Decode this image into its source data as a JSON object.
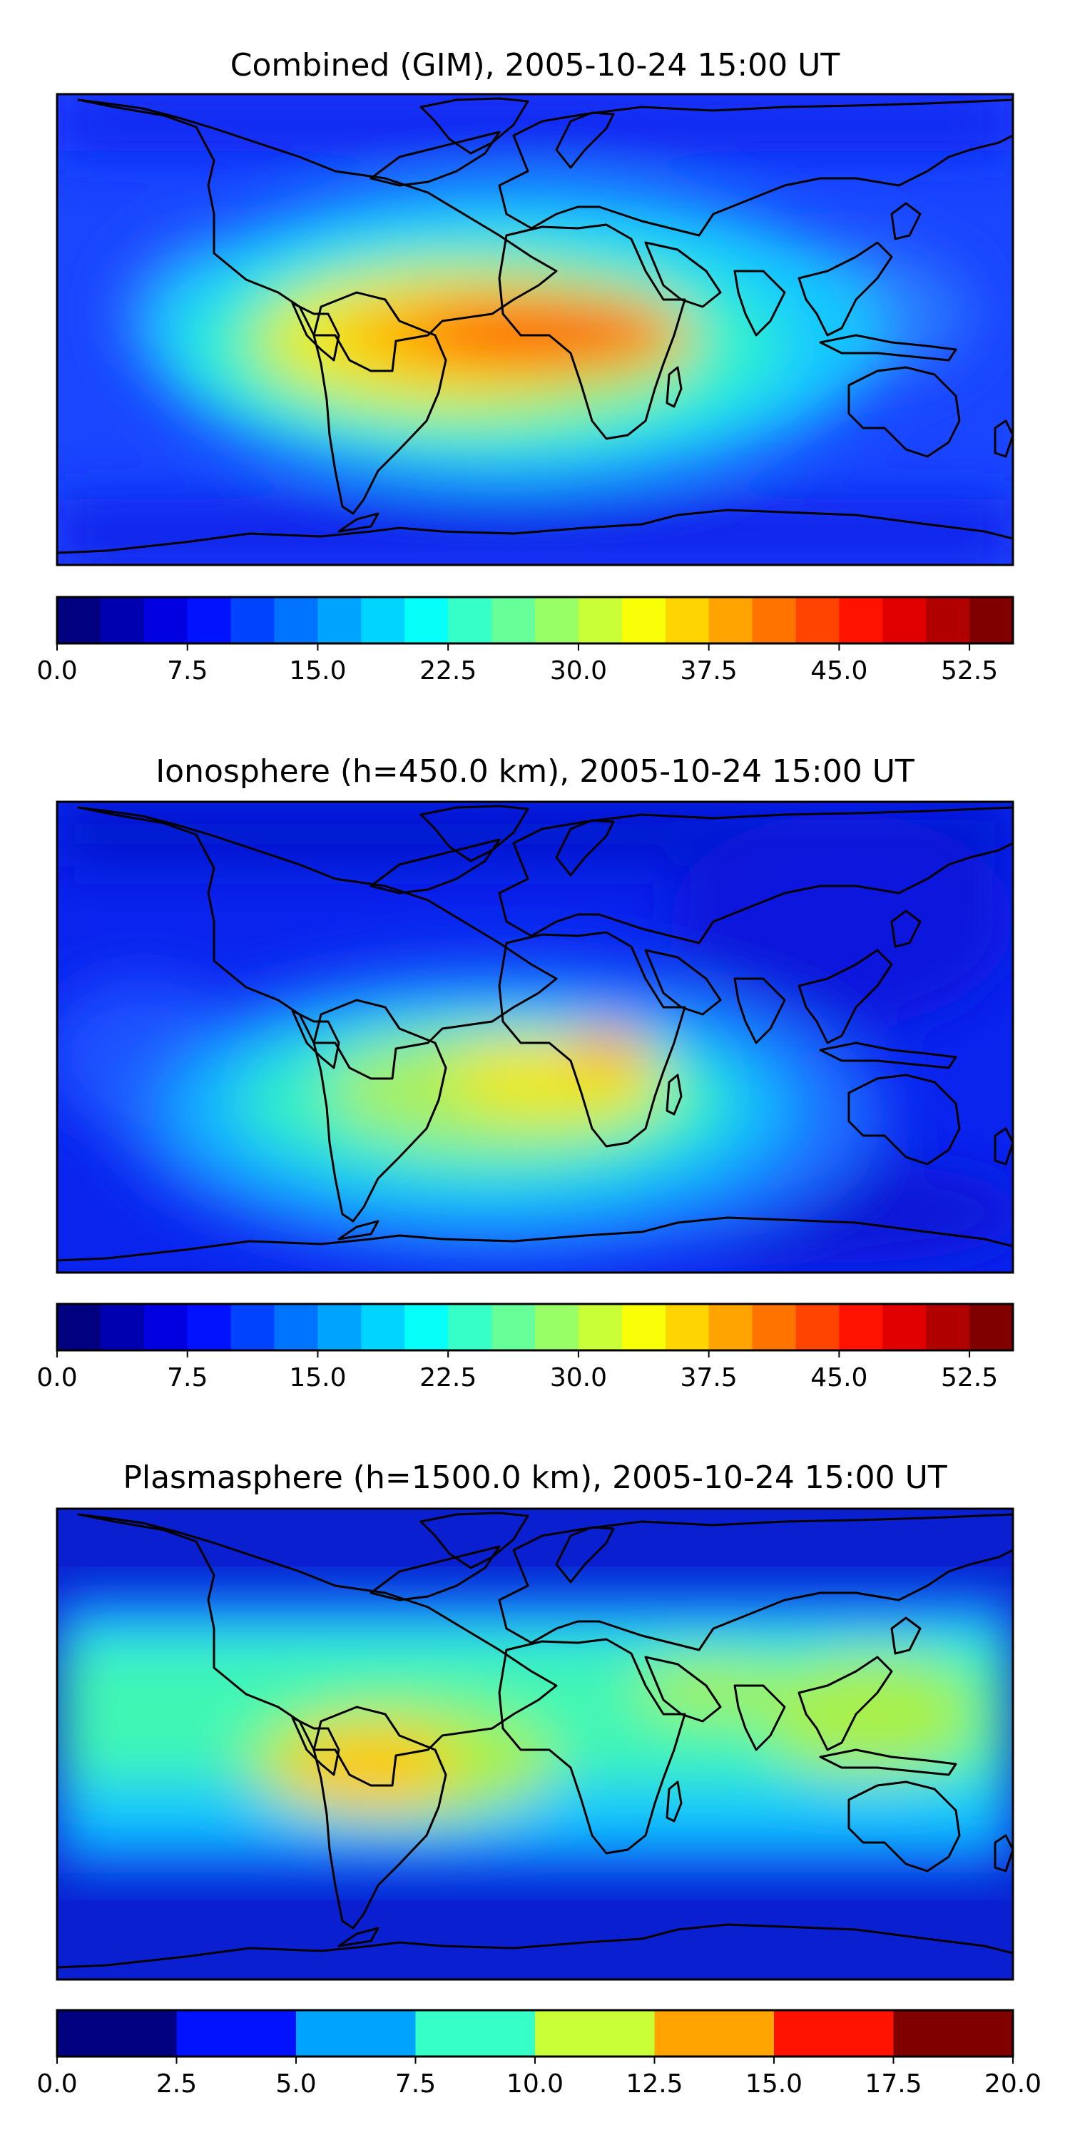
{
  "panels": [
    {
      "title": "Combined (GIM), 2005-10-24 15:00 UT",
      "variable": "combined",
      "colorbar": {
        "vmin": 0,
        "vmax": 55,
        "levels": [
          0,
          2.5,
          5,
          7.5,
          10,
          12.5,
          15,
          17.5,
          20,
          22.5,
          25,
          27.5,
          30,
          32.5,
          35,
          37.5,
          40,
          42.5,
          45,
          47.5,
          50,
          52.5,
          55
        ],
        "tick_labels": [
          "0.0",
          "7.5",
          "15.0",
          "22.5",
          "30.0",
          "37.5",
          "45.0",
          "52.5"
        ],
        "tick_values": [
          0,
          7.5,
          15,
          22.5,
          30,
          37.5,
          45,
          52.5
        ]
      }
    },
    {
      "title": "Ionosphere  (h=450.0 km), 2005-10-24 15:00 UT",
      "variable": "ionosphere",
      "colorbar": {
        "vmin": 0,
        "vmax": 55,
        "levels": [
          0,
          2.5,
          5,
          7.5,
          10,
          12.5,
          15,
          17.5,
          20,
          22.5,
          25,
          27.5,
          30,
          32.5,
          35,
          37.5,
          40,
          42.5,
          45,
          47.5,
          50,
          52.5,
          55
        ],
        "tick_labels": [
          "0.0",
          "7.5",
          "15.0",
          "22.5",
          "30.0",
          "37.5",
          "45.0",
          "52.5"
        ],
        "tick_values": [
          0,
          7.5,
          15,
          22.5,
          30,
          37.5,
          45,
          52.5
        ]
      }
    },
    {
      "title": "Plasmasphere (h=1500.0 km), 2005-10-24 15:00 UT",
      "variable": "plasmasphere",
      "colorbar": {
        "vmin": 0,
        "vmax": 20,
        "levels": [
          0,
          2.5,
          5,
          7.5,
          10,
          12.5,
          15,
          17.5,
          20
        ],
        "tick_labels": [
          "0.0",
          "2.5",
          "5.0",
          "7.5",
          "10.0",
          "12.5",
          "15.0",
          "17.5",
          "20.0"
        ],
        "tick_values": [
          0,
          2.5,
          5,
          7.5,
          10,
          12.5,
          15,
          17.5,
          20
        ]
      }
    }
  ],
  "colormap": "jet"
}
